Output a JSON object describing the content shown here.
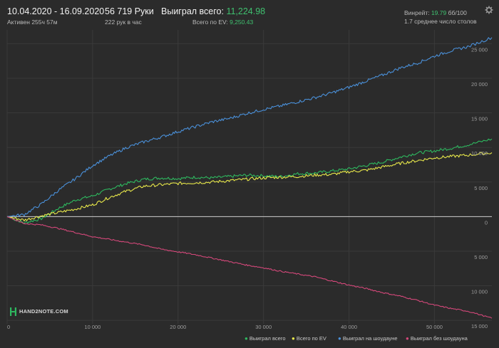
{
  "header": {
    "date_range": "10.04.2020 - 16.09.2020",
    "active": "Активен 255ч 57м",
    "hands": "56 719 Руки",
    "hands_per_hour": "222 рук в час",
    "won_label": "Выиграл всего:",
    "won_value": "11,224.98",
    "ev_label": "Всего по EV:",
    "ev_value": "9,250.43",
    "winrate_label": "Винрейт:",
    "winrate_value": "19.79",
    "winrate_unit": "бб/100",
    "avg_tables": "1.7 среднее число столов"
  },
  "icons": {
    "settings": "gear-icon",
    "logo": "hand2note-logo-icon"
  },
  "logo_text": "HAND2NOTE.COM",
  "colors": {
    "background": "#2b2b2b",
    "grid": "#3a3a3a",
    "won": "#2eb85f",
    "ev": "#e8e84a",
    "showdown": "#4a90d9",
    "non_showdown": "#d4487a",
    "accent_green": "#3fc06f"
  },
  "chart_data": {
    "type": "line",
    "x_ticks": [
      0,
      10000,
      20000,
      30000,
      40000,
      50000
    ],
    "x_tick_labels": [
      "0",
      "10 000",
      "20 000",
      "30 000",
      "40 000",
      "50 000"
    ],
    "y_ticks": [
      -15000,
      -10000,
      -5000,
      0,
      5000,
      10000,
      15000,
      20000,
      25000
    ],
    "y_tick_labels": [
      "15 000",
      "10 000",
      "5 000",
      "0",
      "5 000",
      "10 000",
      "15 000",
      "20 000",
      "25 000"
    ],
    "xlim": [
      0,
      56719
    ],
    "ylim": [
      -15500,
      27000
    ],
    "grid": true,
    "legend_position": "bottom-right",
    "x": [
      0,
      2000,
      4000,
      6000,
      8000,
      10000,
      12000,
      14000,
      16000,
      18000,
      20000,
      22000,
      24000,
      26000,
      28000,
      30000,
      32000,
      34000,
      36000,
      38000,
      40000,
      42000,
      44000,
      46000,
      48000,
      50000,
      52000,
      54000,
      56719
    ],
    "series": [
      {
        "name": "Выиграл всего",
        "color": "#2eb85f",
        "values": [
          0,
          -900,
          -300,
          1200,
          2400,
          3000,
          4000,
          4800,
          5400,
          5600,
          5500,
          5700,
          5600,
          5800,
          6000,
          5900,
          5800,
          6200,
          6300,
          6600,
          6900,
          7400,
          7900,
          8600,
          9200,
          9500,
          9900,
          10400,
          11225
        ]
      },
      {
        "name": "Всего по EV",
        "color": "#e8e84a",
        "values": [
          0,
          -500,
          100,
          600,
          1100,
          1700,
          2800,
          3700,
          4400,
          4600,
          4800,
          4900,
          5000,
          5200,
          5400,
          5600,
          5700,
          5800,
          6000,
          6100,
          6500,
          6700,
          7200,
          7700,
          8100,
          8500,
          8700,
          8900,
          9250
        ]
      },
      {
        "name": "Выиграл на шоудауне",
        "color": "#4a90d9",
        "values": [
          0,
          300,
          1800,
          3800,
          5500,
          7400,
          8800,
          10000,
          10800,
          11500,
          12300,
          13000,
          13700,
          14200,
          14900,
          15500,
          16000,
          16600,
          17200,
          17900,
          18700,
          19600,
          20500,
          21500,
          22200,
          23200,
          24000,
          24600,
          25900
        ]
      },
      {
        "name": "Выиграл без шоудауна",
        "color": "#d4487a",
        "values": [
          0,
          -1000,
          -1200,
          -1700,
          -2300,
          -2900,
          -3300,
          -3700,
          -4100,
          -4700,
          -5100,
          -5500,
          -6000,
          -6500,
          -7000,
          -7400,
          -7900,
          -8300,
          -8700,
          -9300,
          -9900,
          -10400,
          -11000,
          -11500,
          -12100,
          -12800,
          -13300,
          -13700,
          -14700
        ]
      }
    ]
  }
}
